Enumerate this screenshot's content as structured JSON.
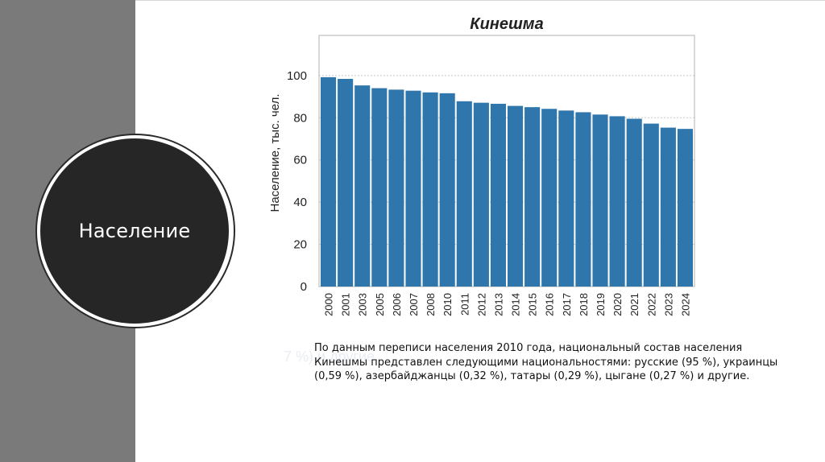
{
  "slide": {
    "section_title": "Население",
    "ghost_text": "7 %) и другие",
    "caption": "По данным переписи населения 2010 года, национальный состав населения Кинешмы представлен следующими национальностями: русские (95 %), украинцы (0,59 %), азербайджанцы (0,32 %), татары (0,29 %), цыгане (0,27 %) и другие."
  },
  "colors": {
    "bar": "#2e76ab",
    "left_band": "#7a7a7a",
    "circle": "#262626"
  },
  "chart_data": {
    "type": "bar",
    "title": "Кинешма",
    "xlabel": "",
    "ylabel": "Население, тыс. чел.",
    "categories": [
      "2000",
      "2001",
      "2003",
      "2005",
      "2006",
      "2007",
      "2008",
      "2010",
      "2011",
      "2012",
      "2013",
      "2014",
      "2015",
      "2016",
      "2017",
      "2018",
      "2019",
      "2020",
      "2021",
      "2022",
      "2023",
      "2024"
    ],
    "values": [
      99.2,
      98.4,
      95.3,
      94.0,
      93.3,
      92.8,
      92.0,
      91.6,
      87.8,
      87.1,
      86.6,
      85.6,
      85.0,
      84.2,
      83.4,
      82.6,
      81.5,
      80.7,
      79.5,
      77.2,
      75.3,
      74.7
    ],
    "yticks": [
      0,
      20,
      40,
      60,
      80,
      100
    ],
    "ylim": [
      0,
      119
    ],
    "grid": "horizontal dotted"
  }
}
